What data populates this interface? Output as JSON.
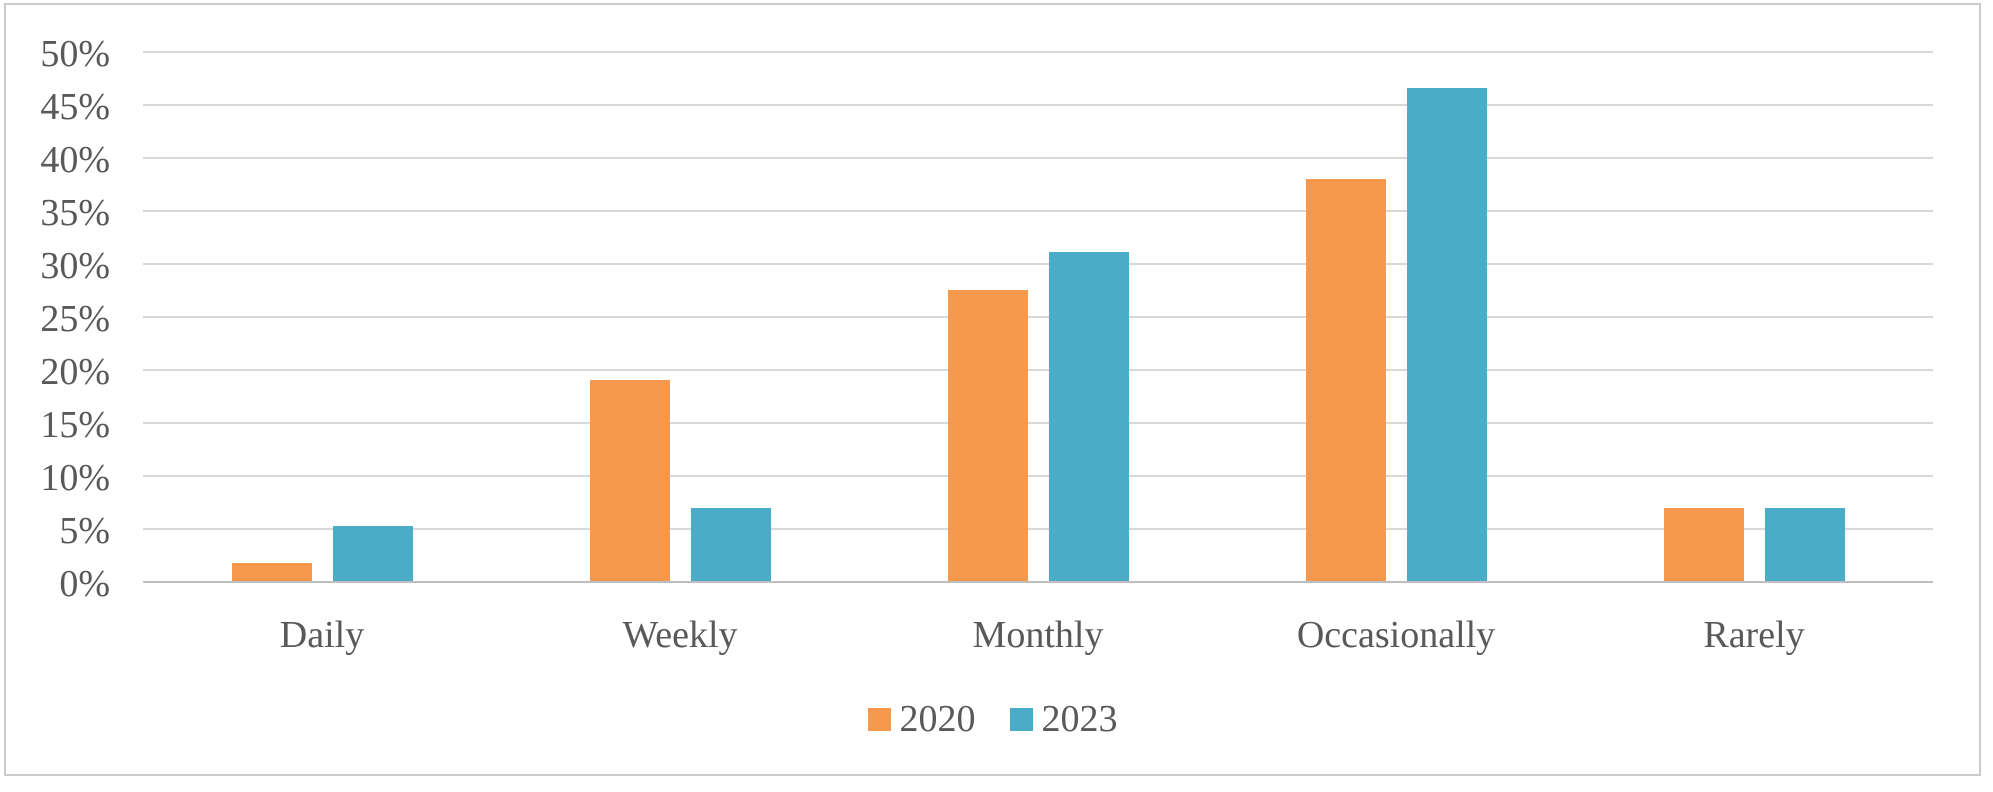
{
  "chart_data": {
    "type": "bar",
    "categories": [
      "Daily",
      "Weekly",
      "Monthly",
      "Occasionally",
      "Rarely"
    ],
    "series": [
      {
        "name": "2020",
        "color": "#F6994D",
        "values": [
          1.7,
          19,
          27.5,
          37.9,
          6.9
        ]
      },
      {
        "name": "2023",
        "color": "#4AACC6",
        "values": [
          5.2,
          6.9,
          31,
          46.5,
          6.9
        ]
      }
    ],
    "title": "",
    "xlabel": "",
    "ylabel": "",
    "y_axis": {
      "min": 0,
      "max": 50,
      "step": 5,
      "tick_labels": [
        "0%",
        "5%",
        "10%",
        "15%",
        "20%",
        "25%",
        "30%",
        "35%",
        "40%",
        "45%",
        "50%"
      ]
    },
    "grid": true,
    "legend_position": "bottom"
  },
  "style_colors": {
    "gridline": "#D9D9D9",
    "axis_line": "#BFBFBF",
    "text": "#595959",
    "border": "#CBCBCB",
    "background": "#FFFFFF"
  }
}
